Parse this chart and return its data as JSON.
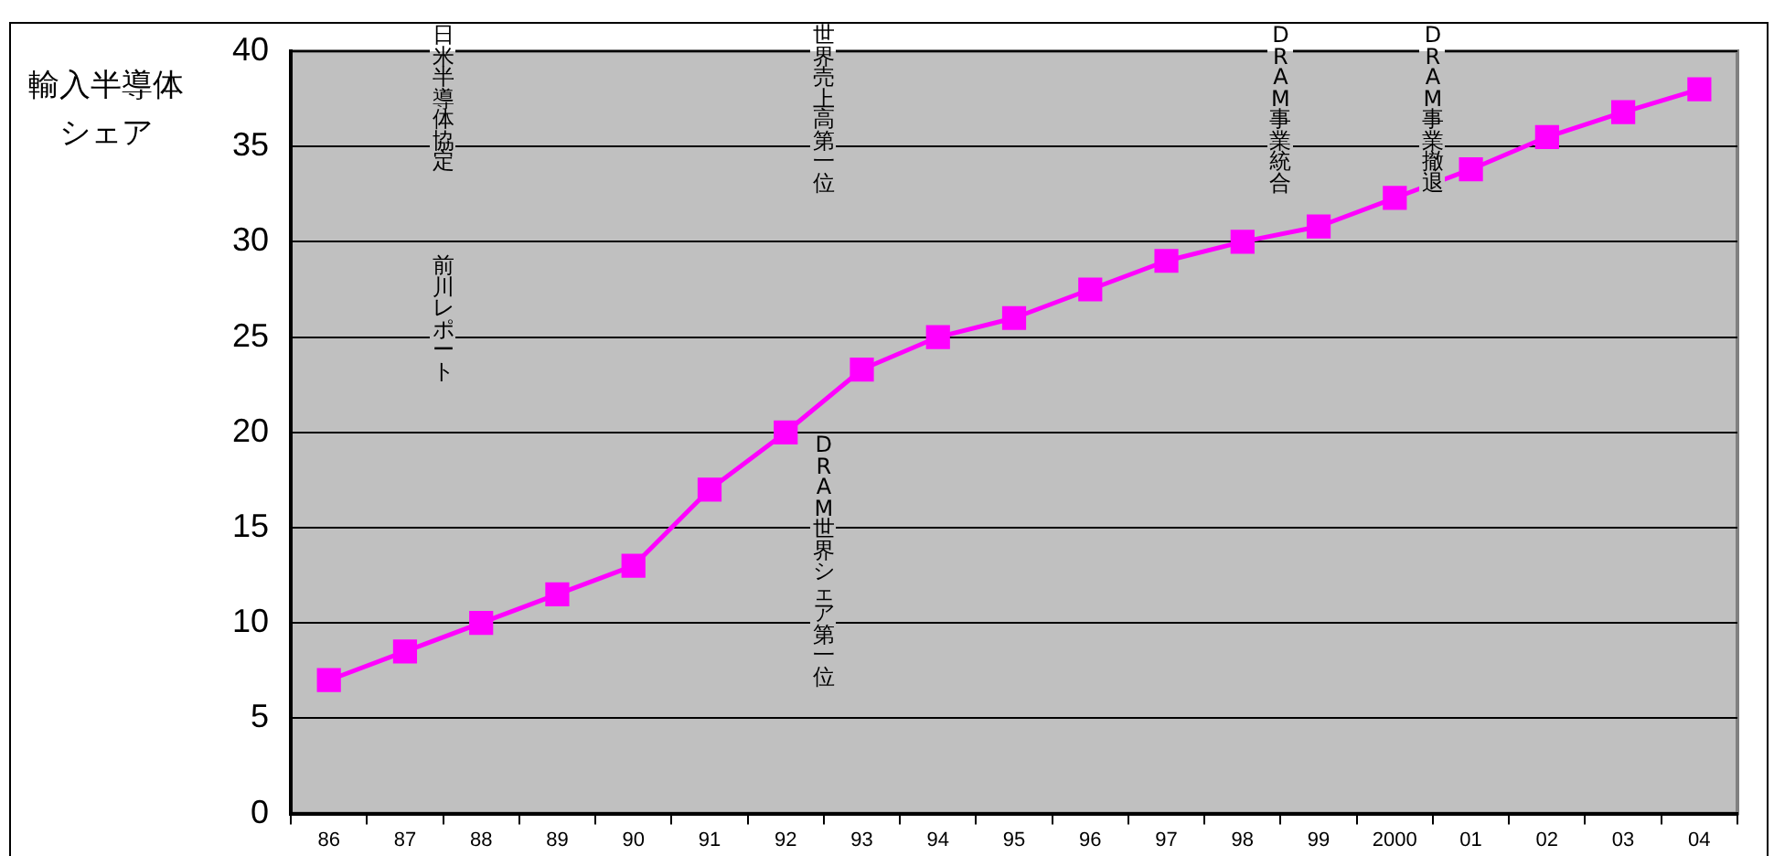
{
  "chart_data": {
    "type": "line",
    "ylabel": "輸入半導体シェア",
    "categories": [
      "86",
      "87",
      "88",
      "89",
      "90",
      "91",
      "92",
      "93",
      "94",
      "95",
      "96",
      "97",
      "98",
      "99",
      "2000",
      "01",
      "02",
      "03",
      "04"
    ],
    "series": [
      {
        "color": "#ff00ff",
        "values": [
          7,
          8.5,
          10,
          11.5,
          13,
          17,
          20,
          23.3,
          25,
          26,
          27.5,
          29,
          30,
          30.8,
          32.3,
          33.8,
          35.5,
          36.8,
          38
        ]
      }
    ],
    "ylim": [
      0,
      40
    ],
    "yticks": [
      0,
      5,
      10,
      15,
      20,
      25,
      30,
      35,
      40
    ],
    "grid": "y",
    "legend": false,
    "marker": "square",
    "line_style": "solid",
    "annotations": [
      "日米半導体協定",
      "前川レポート",
      "世界売上高第一位",
      "DRAM世界シェア第一位",
      "DRAM事業統合",
      "DRAM事業撤退"
    ]
  }
}
